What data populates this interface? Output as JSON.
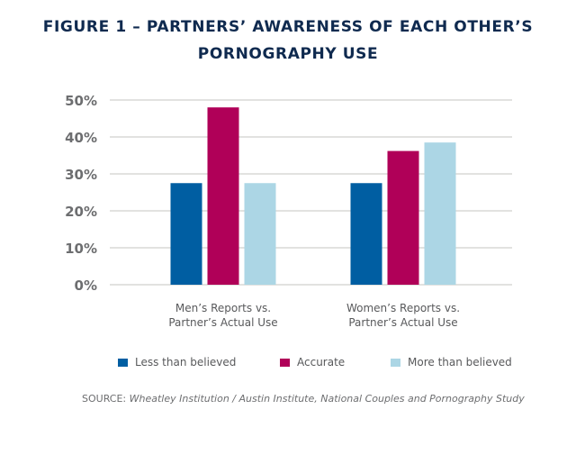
{
  "title_lines": [
    "FIGURE 1 – PARTNERS’ AWARENESS OF EACH OTHER’S",
    "PORNOGRAPHY USE"
  ],
  "chart_data": {
    "type": "bar",
    "title": "FIGURE 1 – PARTNERS’ AWARENESS OF EACH OTHER’S PORNOGRAPHY USE",
    "categories": [
      [
        "Men’s Reports vs.",
        "Partner’s Actual Use"
      ],
      [
        "Women’s Reports vs.",
        "Partner’s Actual Use"
      ]
    ],
    "series": [
      {
        "name": "Less than believed",
        "color": "#005ea2",
        "values": [
          27.5,
          27.5
        ]
      },
      {
        "name": "Accurate",
        "color": "#b00058",
        "values": [
          48,
          36.2
        ]
      },
      {
        "name": "More than believed",
        "color": "#acd6e5",
        "values": [
          27.5,
          38.5
        ]
      }
    ],
    "yticks": [
      "0%",
      "10%",
      "20%",
      "30%",
      "40%",
      "50%"
    ],
    "ylim": [
      0,
      50
    ],
    "xlabel": "",
    "ylabel": "",
    "grid": true,
    "legend_position": "bottom"
  },
  "source": {
    "label": "SOURCE:",
    "text": "Wheatley Institution / Austin Institute, National Couples and Pornography Study"
  }
}
